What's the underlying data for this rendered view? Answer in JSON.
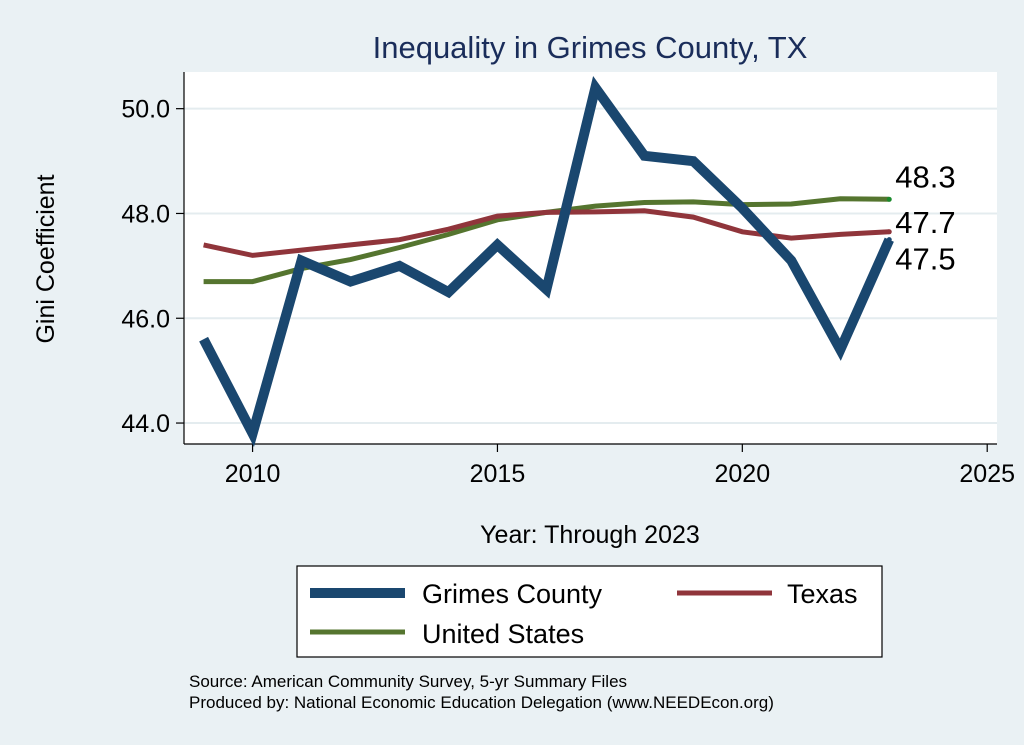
{
  "chart_data": {
    "type": "line",
    "title": "Inequality in Grimes County, TX",
    "xlabel": "Year: Through 2023",
    "ylabel": "Gini Coefficient",
    "xlim": [
      2008.6,
      2025.2
    ],
    "ylim": [
      43.6,
      50.7
    ],
    "x_ticks": [
      2010,
      2015,
      2020,
      2025
    ],
    "x_tick_labels": [
      "2010",
      "2015",
      "2020",
      "2025"
    ],
    "y_ticks": [
      44,
      46,
      48,
      50
    ],
    "y_tick_labels": [
      "44.0",
      "46.0",
      "48.0",
      "50.0"
    ],
    "grid": "horizontal",
    "legend_position": "bottom",
    "series": [
      {
        "name": "Grimes County",
        "color": "#1a476f",
        "x": [
          2009,
          2010,
          2011,
          2012,
          2013,
          2014,
          2015,
          2016,
          2017,
          2018,
          2019,
          2020,
          2021,
          2022,
          2023
        ],
        "values": [
          45.6,
          43.8,
          47.1,
          46.7,
          47.0,
          46.5,
          47.4,
          46.55,
          50.4,
          49.1,
          49.0,
          48.1,
          47.1,
          45.4,
          47.5
        ],
        "end_label": "47.5"
      },
      {
        "name": "Texas",
        "color": "#90353b",
        "x": [
          2009,
          2010,
          2011,
          2012,
          2013,
          2014,
          2015,
          2016,
          2017,
          2018,
          2019,
          2020,
          2021,
          2022,
          2023
        ],
        "values": [
          47.4,
          47.2,
          47.3,
          47.4,
          47.5,
          47.7,
          47.95,
          48.02,
          48.03,
          48.05,
          47.93,
          47.65,
          47.53,
          47.6,
          47.65
        ],
        "end_label": "47.7"
      },
      {
        "name": "United States",
        "color": "#55752f",
        "x": [
          2009,
          2010,
          2011,
          2012,
          2013,
          2014,
          2015,
          2016,
          2017,
          2018,
          2019,
          2020,
          2021,
          2022,
          2023
        ],
        "values": [
          46.7,
          46.7,
          46.95,
          47.12,
          47.35,
          47.6,
          47.88,
          48.02,
          48.14,
          48.21,
          48.22,
          48.17,
          48.18,
          48.28,
          48.27
        ],
        "end_label": "48.3"
      }
    ]
  },
  "footer": {
    "source": "Source: American Community Survey, 5-yr Summary Files",
    "producer": "Produced by: National Economic Education Delegation (www.NEEDEcon.org)"
  }
}
